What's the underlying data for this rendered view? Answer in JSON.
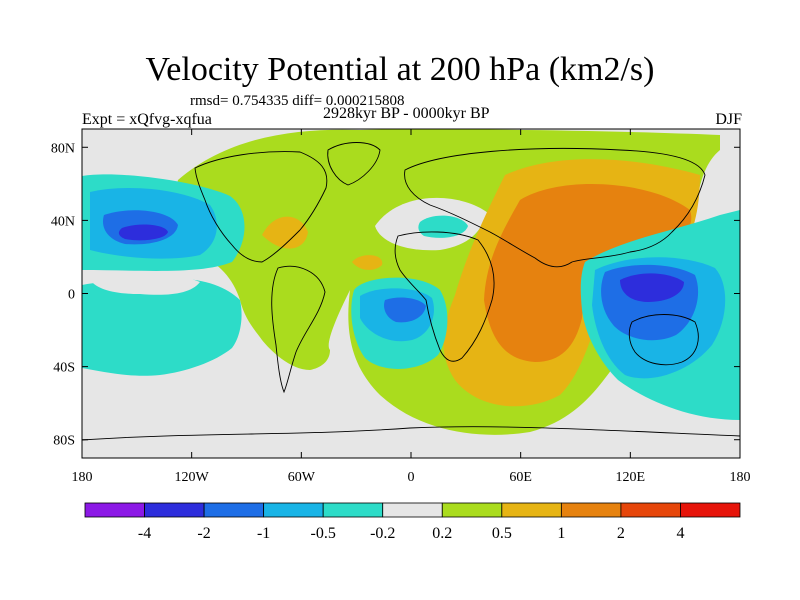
{
  "chart_data": {
    "type": "heatmap",
    "title": "Velocity Potential at 200 hPa (km2/s)",
    "stats": "rmsd= 0.754335 diff= 0.000215808",
    "experiment": "Expt = xQfvg-xqfua",
    "period": "2928kyr BP - 0000kyr BP",
    "season": "DJF",
    "x_ticks": [
      "180",
      "120W",
      "60W",
      "0",
      "60E",
      "120E",
      "180"
    ],
    "y_ticks": [
      "80N",
      "40N",
      "0",
      "40S",
      "80S"
    ],
    "xlim": [
      -180,
      180
    ],
    "ylim": [
      -90,
      90
    ],
    "colorbar": {
      "levels": [
        "-4",
        "-2",
        "-1",
        "-0.5",
        "-0.2",
        "0.2",
        "0.5",
        "1",
        "2",
        "4"
      ],
      "colors": [
        "#8c19e6",
        "#2d2ddc",
        "#1e6ee6",
        "#19b4e6",
        "#2ddcc8",
        "#e6e6e6",
        "#aadc1e",
        "#e6b414",
        "#e6820f",
        "#e6460a",
        "#e6140a"
      ]
    },
    "regions": [
      {
        "level": "0.2 to 0.5",
        "description": "broad positive band over Atlantic, Europe and North America"
      },
      {
        "level": "0.5 to 1",
        "description": "Africa and Indian Ocean positive sector"
      },
      {
        "level": "1 to 2",
        "description": "maximum over Arabia, Indian Ocean and East Asia"
      },
      {
        "level": "-1 to -2",
        "description": "North Pacific negative center near 140W 35N"
      },
      {
        "level": "-2 to -4",
        "description": "Maritime Continent minimum near 135E 0"
      }
    ]
  }
}
